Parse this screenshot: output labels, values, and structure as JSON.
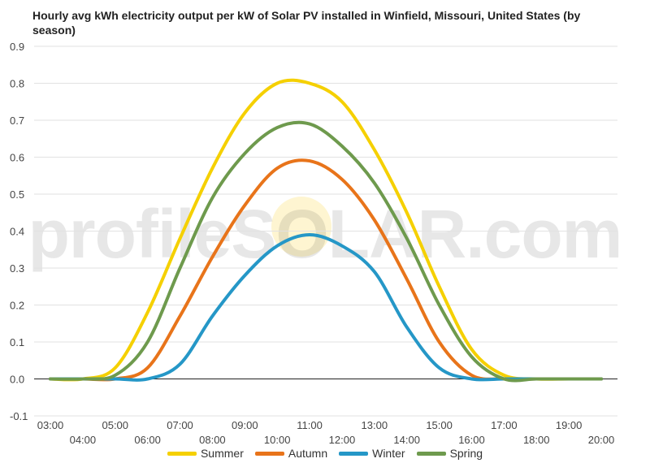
{
  "title": "Hourly avg kWh electricity output per kW of Solar PV installed in Winfield, Missouri, United States (by season)",
  "watermark": "profileSOLAR.com",
  "chart_data": {
    "type": "line",
    "title": "Hourly avg kWh electricity output per kW of Solar PV installed in Winfield, Missouri, United States (by season)",
    "xlabel": "",
    "ylabel": "",
    "ylim": [
      -0.1,
      0.9
    ],
    "yticks": [
      "0.9",
      "0.8",
      "0.7",
      "0.6",
      "0.5",
      "0.4",
      "0.3",
      "0.2",
      "0.1",
      "0.0",
      "-0.1"
    ],
    "x": [
      "03:00",
      "04:00",
      "05:00",
      "06:00",
      "07:00",
      "08:00",
      "09:00",
      "10:00",
      "11:00",
      "12:00",
      "13:00",
      "14:00",
      "15:00",
      "16:00",
      "17:00",
      "18:00",
      "19:00",
      "20:00"
    ],
    "grid": true,
    "legend_position": "bottom",
    "series": [
      {
        "name": "Summer",
        "color": "#f5d000",
        "values": [
          0.0,
          0.0,
          0.03,
          0.18,
          0.38,
          0.57,
          0.72,
          0.8,
          0.8,
          0.75,
          0.62,
          0.45,
          0.25,
          0.08,
          0.01,
          0.0,
          0.0,
          0.0
        ]
      },
      {
        "name": "Autumn",
        "color": "#e8741a",
        "values": [
          0.0,
          0.0,
          0.0,
          0.03,
          0.17,
          0.33,
          0.47,
          0.57,
          0.59,
          0.54,
          0.43,
          0.27,
          0.1,
          0.01,
          0.0,
          0.0,
          0.0,
          0.0
        ]
      },
      {
        "name": "Winter",
        "color": "#2597c7",
        "values": [
          0.0,
          0.0,
          0.0,
          0.0,
          0.04,
          0.17,
          0.28,
          0.36,
          0.39,
          0.36,
          0.29,
          0.14,
          0.03,
          0.0,
          0.0,
          0.0,
          0.0,
          0.0
        ]
      },
      {
        "name": "Spring",
        "color": "#6e9a4d",
        "values": [
          0.0,
          0.0,
          0.01,
          0.1,
          0.3,
          0.49,
          0.61,
          0.68,
          0.69,
          0.63,
          0.53,
          0.38,
          0.2,
          0.06,
          0.0,
          0.0,
          0.0,
          0.0
        ]
      }
    ]
  }
}
